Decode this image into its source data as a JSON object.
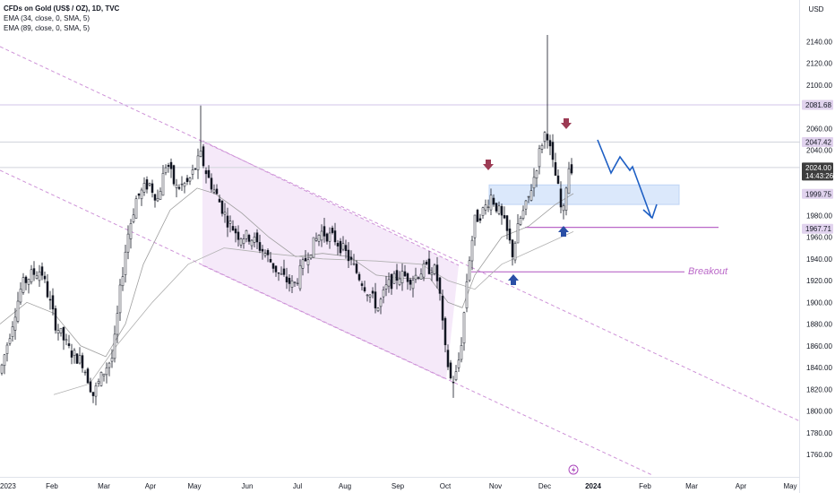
{
  "legend": {
    "symbol": "CFDs on Gold (US$ / OZ), 1D, TVC",
    "ema1": "EMA (34, close, 0, SMA, 5)",
    "ema2": "EMA (89, close, 0, SMA, 5)"
  },
  "currency": "USD",
  "annotations": {
    "breakout": "Breakout",
    "countdown": "14:43:26"
  },
  "colors": {
    "candle": "#131722",
    "channel_line": "#ce93d8",
    "channel_fill": "#f3e5f8",
    "level_line": "#ba68c8",
    "zone_fill": "#dbe8fb",
    "zone_stroke": "#bfd4f5",
    "arrow_up": "#2a4fa6",
    "arrow_down": "#9c3b54",
    "projection": "#1e5fc4",
    "ema_line": "#9e9e9e",
    "price_tag": "#e1d3ee",
    "current_tag": "#3d3d3d"
  },
  "chart_data": {
    "type": "candlestick",
    "title": "CFDs on Gold (US$ / OZ), 1D, TVC",
    "ylim": [
      1745,
      2160
    ],
    "y_ticks": [
      1760,
      1780,
      1800,
      1820,
      1840,
      1860,
      1880,
      1900,
      1920,
      1940,
      1960,
      1980,
      2000,
      2020,
      2040,
      2060,
      2080,
      2100,
      2120,
      2140
    ],
    "x_ticks": [
      "2023",
      "Feb",
      "Mar",
      "Apr",
      "May",
      "Jun",
      "Jul",
      "Aug",
      "Sep",
      "Oct",
      "Nov",
      "Dec",
      "2024",
      "Feb",
      "Mar",
      "Apr",
      "May"
    ],
    "price_labels": [
      {
        "value": 2081.68,
        "text": "2081.68"
      },
      {
        "value": 2047.42,
        "text": "2047.42"
      },
      {
        "value": 2024.0,
        "text": "2024.00"
      },
      {
        "value": 1999.75,
        "text": "1999.75"
      },
      {
        "value": 1967.71,
        "text": "1967.71"
      }
    ],
    "close_path": [
      [
        0,
        1835
      ],
      [
        12,
        1875
      ],
      [
        24,
        1915
      ],
      [
        34,
        1925
      ],
      [
        46,
        1930
      ],
      [
        62,
        1880
      ],
      [
        78,
        1855
      ],
      [
        92,
        1845
      ],
      [
        104,
        1815
      ],
      [
        118,
        1840
      ],
      [
        126,
        1850
      ],
      [
        134,
        1910
      ],
      [
        142,
        1960
      ],
      [
        152,
        1995
      ],
      [
        166,
        2010
      ],
      [
        176,
        1995
      ],
      [
        186,
        2030
      ],
      [
        196,
        2005
      ],
      [
        210,
        2010
      ],
      [
        224,
        2035
      ],
      [
        232,
        2015
      ],
      [
        242,
        1998
      ],
      [
        254,
        1975
      ],
      [
        266,
        1962
      ],
      [
        280,
        1960
      ],
      [
        296,
        1945
      ],
      [
        312,
        1925
      ],
      [
        328,
        1915
      ],
      [
        344,
        1945
      ],
      [
        358,
        1965
      ],
      [
        374,
        1958
      ],
      [
        386,
        1945
      ],
      [
        400,
        1925
      ],
      [
        412,
        1908
      ],
      [
        422,
        1895
      ],
      [
        432,
        1915
      ],
      [
        446,
        1925
      ],
      [
        460,
        1922
      ],
      [
        472,
        1930
      ],
      [
        484,
        1932
      ],
      [
        490,
        1915
      ],
      [
        496,
        1860
      ],
      [
        504,
        1825
      ],
      [
        510,
        1835
      ],
      [
        516,
        1870
      ],
      [
        522,
        1930
      ],
      [
        530,
        1975
      ],
      [
        540,
        1985
      ],
      [
        548,
        1998
      ],
      [
        556,
        1985
      ],
      [
        564,
        1970
      ],
      [
        572,
        1945
      ],
      [
        580,
        1975
      ],
      [
        588,
        1990
      ],
      [
        596,
        2015
      ],
      [
        604,
        2045
      ],
      [
        610,
        2060
      ],
      [
        616,
        2030
      ],
      [
        622,
        2010
      ],
      [
        628,
        1975
      ],
      [
        634,
        2025
      ],
      [
        640,
        2024
      ]
    ],
    "ema34_path": [
      [
        0,
        1880
      ],
      [
        30,
        1900
      ],
      [
        60,
        1890
      ],
      [
        90,
        1860
      ],
      [
        118,
        1850
      ],
      [
        140,
        1880
      ],
      [
        160,
        1935
      ],
      [
        190,
        1985
      ],
      [
        220,
        2005
      ],
      [
        240,
        2000
      ],
      [
        270,
        1982
      ],
      [
        300,
        1960
      ],
      [
        330,
        1942
      ],
      [
        360,
        1945
      ],
      [
        390,
        1942
      ],
      [
        420,
        1925
      ],
      [
        450,
        1922
      ],
      [
        480,
        1922
      ],
      [
        500,
        1900
      ],
      [
        516,
        1895
      ],
      [
        530,
        1925
      ],
      [
        560,
        1960
      ],
      [
        590,
        1970
      ],
      [
        620,
        1990
      ],
      [
        640,
        2000
      ]
    ],
    "ema89_path": [
      [
        60,
        1815
      ],
      [
        100,
        1825
      ],
      [
        130,
        1860
      ],
      [
        170,
        1900
      ],
      [
        210,
        1935
      ],
      [
        250,
        1950
      ],
      [
        300,
        1945
      ],
      [
        360,
        1940
      ],
      [
        420,
        1938
      ],
      [
        470,
        1935
      ],
      [
        500,
        1920
      ],
      [
        530,
        1912
      ],
      [
        560,
        1935
      ],
      [
        600,
        1950
      ],
      [
        640,
        1965
      ]
    ]
  }
}
